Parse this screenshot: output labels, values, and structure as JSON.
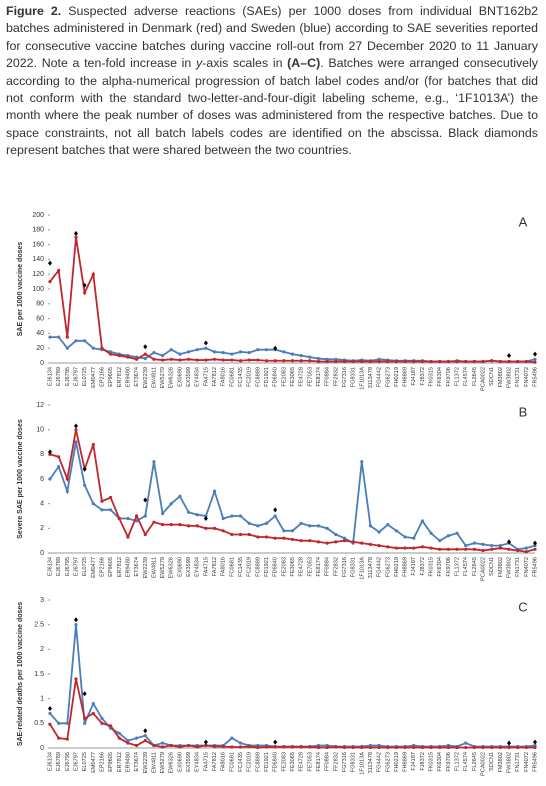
{
  "caption": {
    "label": "Figure 2.",
    "text_1": "Suspected adverse reactions (SAEs) per 1000 doses from individual BNT162b2 batches administered in Denmark (red) and Sweden (blue) according to SAE severities reported for consecutive vaccine batches during vaccine roll-out from 27 December 2020 to 11 January 2022. Note a ten-fold increase in ",
    "italic": "y",
    "text_2": "-axis scales in ",
    "bold": "(A–C)",
    "text_3": ". Batches were arranged consecutively according to the alpha-numerical progression of batch label codes and/or (for batches that did not conform with the standard two-letter-and-four-digit labeling scheme, e.g., ‘1F1013A’) the month where the peak number of doses was administered from the respective batches. Due to space constraints, not all batch labels codes are identified on the abscissa. Black diamonds represent batches that were shared between the two countries."
  },
  "chart_data": [
    {
      "type": "line",
      "panel": "A",
      "y_label": "SAE per 1000 vaccine doses",
      "categories": [
        "EJ6134",
        "EJ6789",
        "EJ6795",
        "EJ6797",
        "EL0725",
        "EM0477",
        "EP2166",
        "EP9605",
        "ER7812",
        "ER9480",
        "ET3674",
        "EW2239",
        "EW4811",
        "EW5279",
        "EW6326",
        "EX0690",
        "EX3599",
        "EY4834",
        "FA4715",
        "FA7812",
        "FA8016",
        "FC0681",
        "FC1435",
        "FC2019",
        "FC8889",
        "FD1921",
        "FD6840",
        "FE2083",
        "FE3065",
        "FE4728",
        "FE7053",
        "FE8174",
        "FF0884",
        "FF2832",
        "FG7316",
        "FG8331",
        "1F1013A",
        "3113478",
        "FG4442",
        "FG6273",
        "FH0219",
        "FH8869",
        "FJ4187",
        "FJ8372",
        "FK0315",
        "FK6304",
        "FK9706",
        "FL1372",
        "FL4574",
        "FL2645",
        "PCA0022",
        "SDCN1",
        "FM3802",
        "FW3802",
        "FN1731",
        "FN4072",
        "FR5496"
      ],
      "series": [
        {
          "color": "#4a7ebb",
          "values": [
            35,
            35,
            20,
            30,
            30,
            20,
            18,
            15,
            12,
            10,
            8,
            6,
            14,
            10,
            18,
            12,
            15,
            18,
            20,
            15,
            14,
            12,
            15,
            14,
            18,
            18,
            18,
            15,
            12,
            10,
            8,
            6,
            5,
            5,
            4,
            3,
            4,
            3,
            5,
            4,
            3,
            3,
            3,
            3,
            2,
            2,
            2,
            3,
            2,
            2,
            2,
            3,
            2,
            2,
            2,
            2,
            5
          ]
        },
        {
          "color": "#c0262c",
          "values": [
            110,
            125,
            35,
            170,
            95,
            120,
            20,
            12,
            10,
            8,
            5,
            12,
            5,
            4,
            5,
            4,
            5,
            4,
            4,
            5,
            4,
            4,
            3,
            4,
            4,
            3,
            3,
            3,
            3,
            3,
            3,
            2,
            2,
            2,
            2,
            2,
            2,
            2,
            2,
            2,
            2,
            2,
            2,
            2,
            2,
            2,
            2,
            2,
            2,
            2,
            2,
            3,
            2,
            2,
            2,
            2,
            1
          ]
        }
      ],
      "markers": {
        "color": "#000000",
        "values": [
          135,
          null,
          null,
          175,
          105,
          null,
          null,
          null,
          null,
          null,
          null,
          22,
          null,
          null,
          null,
          null,
          null,
          null,
          27,
          null,
          null,
          null,
          null,
          null,
          null,
          null,
          20,
          null,
          null,
          null,
          null,
          null,
          null,
          null,
          null,
          null,
          null,
          null,
          null,
          null,
          null,
          null,
          null,
          null,
          null,
          null,
          null,
          null,
          null,
          null,
          null,
          null,
          null,
          10,
          null,
          null,
          12
        ]
      },
      "ylim": [
        0,
        200
      ],
      "yticks": [
        0,
        20,
        40,
        60,
        80,
        100,
        120,
        140,
        160,
        180,
        200
      ]
    },
    {
      "type": "line",
      "panel": "B",
      "y_label": "Severe SAE per 1000 vaccine doses",
      "categories": [
        "EJ6134",
        "EJ6789",
        "EJ6795",
        "EJ6797",
        "EL0725",
        "EM0477",
        "EP2166",
        "EP9605",
        "ER7812",
        "ER9480",
        "ET3674",
        "EW2239",
        "EW4811",
        "EW5279",
        "EW6326",
        "EX0690",
        "EX3599",
        "EY4834",
        "FA4715",
        "FA7812",
        "FA8016",
        "FC0681",
        "FC1435",
        "FC2019",
        "FC8889",
        "FD1921",
        "FD6840",
        "FE2083",
        "FE3065",
        "FE4728",
        "FE7053",
        "FE8174",
        "FF0884",
        "FF2832",
        "FG7316",
        "FG8331",
        "1F1013A",
        "3113478",
        "FG4442",
        "FG6273",
        "FH0219",
        "FH8869",
        "FJ4187",
        "FJ8372",
        "FK0315",
        "FK6304",
        "FK9706",
        "FL1372",
        "FL4574",
        "FL2645",
        "PCA0022",
        "SDCN1",
        "FM3802",
        "FW3802",
        "FN1731",
        "FN4072",
        "FR5496"
      ],
      "series": [
        {
          "color": "#4a7ebb",
          "values": [
            6,
            7,
            5,
            9,
            5.5,
            4,
            3.5,
            3.5,
            2.8,
            2.8,
            2.6,
            3,
            7.4,
            3.2,
            4,
            4.6,
            3.3,
            3.1,
            3,
            5,
            2.8,
            3,
            3,
            2.4,
            2.2,
            2.4,
            3,
            1.8,
            1.8,
            2.4,
            2.2,
            2.2,
            2,
            1.5,
            1.2,
            0.8,
            7.4,
            2.2,
            1.7,
            2.3,
            1.8,
            1.3,
            1.2,
            2.6,
            1.6,
            1,
            1.4,
            1.6,
            0.6,
            0.8,
            0.7,
            0.6,
            0.6,
            0.8,
            0.3,
            0.4,
            0.6
          ]
        },
        {
          "color": "#c0262c",
          "values": [
            8,
            7.8,
            6,
            10,
            6.8,
            8.8,
            4.2,
            4.5,
            2.8,
            1.3,
            3,
            1.5,
            2.5,
            2.3,
            2.3,
            2.3,
            2.2,
            2.2,
            2,
            2,
            1.8,
            1.5,
            1.5,
            1.5,
            1.3,
            1.3,
            1.2,
            1.2,
            1.1,
            1,
            1,
            0.9,
            0.8,
            0.9,
            1,
            0.9,
            0.8,
            0.7,
            0.6,
            0.5,
            0.4,
            0.4,
            0.4,
            0.5,
            0.4,
            0.3,
            0.3,
            0.3,
            0.3,
            0.3,
            0.2,
            0.3,
            0.4,
            0.3,
            0.2,
            0.1,
            0.3
          ]
        }
      ],
      "markers": {
        "color": "#000000",
        "values": [
          8.2,
          null,
          null,
          10.3,
          6.8,
          null,
          null,
          null,
          null,
          null,
          null,
          4.3,
          null,
          null,
          null,
          null,
          null,
          null,
          2.8,
          null,
          null,
          null,
          null,
          null,
          null,
          null,
          3.5,
          null,
          null,
          null,
          null,
          null,
          null,
          null,
          null,
          null,
          null,
          null,
          null,
          null,
          null,
          null,
          null,
          null,
          null,
          null,
          null,
          null,
          null,
          null,
          null,
          null,
          null,
          0.9,
          null,
          null,
          0.8
        ]
      },
      "ylim": [
        0,
        12
      ],
      "yticks": [
        0,
        2,
        4,
        6,
        8,
        10,
        12
      ]
    },
    {
      "type": "line",
      "panel": "C",
      "y_label": "SAE-related deaths per 1000 vaccine doses",
      "categories": [
        "EJ6134",
        "EJ6789",
        "EJ6795",
        "EJ6797",
        "EL0725",
        "EM0477",
        "EP2166",
        "EP9605",
        "ER7812",
        "ER9480",
        "ET3674",
        "EW2239",
        "EW4811",
        "EW5279",
        "EW6326",
        "EX0690",
        "EX3599",
        "EY4834",
        "FA4715",
        "FA7812",
        "FA8016",
        "FC0681",
        "FC1435",
        "FC2019",
        "FC8889",
        "FD1921",
        "FD6840",
        "FE2083",
        "FE3065",
        "FE4728",
        "FE7053",
        "FE8174",
        "FF0884",
        "FF2832",
        "FG7316",
        "FG8331",
        "1F1013A",
        "3113478",
        "FG4442",
        "FG6273",
        "FH0219",
        "FH8869",
        "FJ4187",
        "FJ8372",
        "FK0315",
        "FK6304",
        "FK9706",
        "FL1372",
        "FL4574",
        "FL2645",
        "PCA0022",
        "SDCN1",
        "FM3802",
        "FW3802",
        "FN1731",
        "FN4072",
        "FR5496"
      ],
      "series": [
        {
          "color": "#4a7ebb",
          "values": [
            0.7,
            0.5,
            0.5,
            2.5,
            0.5,
            0.9,
            0.6,
            0.4,
            0.3,
            0.15,
            0.2,
            0.25,
            0.05,
            0.1,
            0.05,
            0.05,
            0.05,
            0.05,
            0.05,
            0.05,
            0.05,
            0.2,
            0.1,
            0.05,
            0.05,
            0.05,
            0.03,
            0.03,
            0.03,
            0.03,
            0.03,
            0.05,
            0.05,
            0.03,
            0.03,
            0.03,
            0.03,
            0.05,
            0.05,
            0.03,
            0.03,
            0.03,
            0.05,
            0.03,
            0.03,
            0.03,
            0.05,
            0.03,
            0.1,
            0.03,
            0.03,
            0.03,
            0.03,
            0.03,
            0.03,
            0.03,
            0.05
          ]
        },
        {
          "color": "#c0262c",
          "values": [
            0.48,
            0.2,
            0.18,
            1.4,
            0.6,
            0.7,
            0.5,
            0.45,
            0.2,
            0.1,
            0.05,
            0.15,
            0.05,
            0.02,
            0.05,
            0.02,
            0.05,
            0.02,
            0.05,
            0.03,
            0.03,
            0.02,
            0.02,
            0.03,
            0.01,
            0.02,
            0.02,
            0.02,
            0.02,
            0.02,
            0.02,
            0.01,
            0.01,
            0.02,
            0.01,
            0.01,
            0.01,
            0.01,
            0.01,
            0.01,
            0.01,
            0.01,
            0.01,
            0.01,
            0.01,
            0.01,
            0.01,
            0.01,
            0.01,
            0.01,
            0.01,
            0.01,
            0.01,
            0.01,
            0.01,
            0.01,
            0.01
          ]
        }
      ],
      "markers": {
        "color": "#000000",
        "values": [
          0.8,
          null,
          null,
          2.6,
          1.1,
          null,
          null,
          null,
          null,
          null,
          null,
          0.35,
          null,
          null,
          null,
          null,
          null,
          null,
          0.12,
          null,
          null,
          null,
          null,
          null,
          null,
          null,
          0.12,
          null,
          null,
          null,
          null,
          null,
          null,
          null,
          null,
          null,
          null,
          null,
          null,
          null,
          null,
          null,
          null,
          null,
          null,
          null,
          null,
          null,
          null,
          null,
          null,
          null,
          null,
          0.1,
          null,
          null,
          0.12
        ]
      },
      "ylim": [
        0,
        3
      ],
      "yticks": [
        0,
        0.5,
        1,
        1.5,
        2,
        2.5,
        3
      ]
    }
  ]
}
